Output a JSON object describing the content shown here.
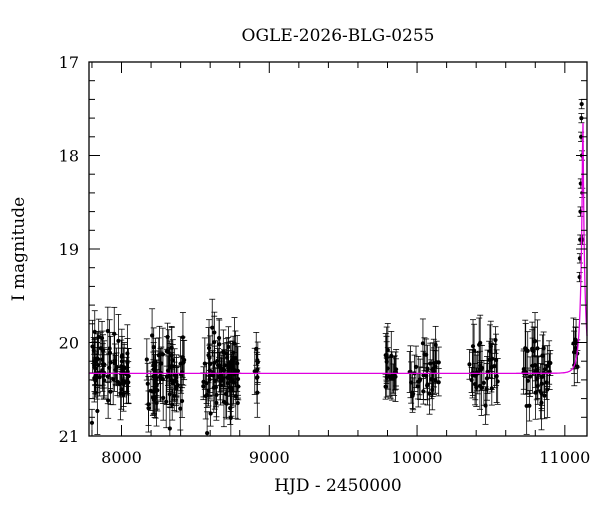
{
  "chart_data": {
    "type": "scatter",
    "title": "OGLE-2026-BLG-0255",
    "xlabel": "HJD - 2450000",
    "ylabel": "I magnitude",
    "xlim": [
      7780,
      11150
    ],
    "ylim": [
      21,
      17
    ],
    "y_inverted": true,
    "x_ticks": [
      8000,
      9000,
      10000,
      11000
    ],
    "y_ticks": [
      17,
      18,
      19,
      20,
      21
    ],
    "grid": false,
    "colors": {
      "points": "#000000",
      "model": "#e000e0",
      "axes": "#000000"
    },
    "series": [
      {
        "kind": "points",
        "seasons": [
          {
            "x_range": [
              7800,
              8050
            ],
            "mag_mean": 20.3,
            "mag_spread": 0.45,
            "err": 0.22,
            "count": 70
          },
          {
            "x_range": [
              8170,
              8430
            ],
            "mag_mean": 20.35,
            "mag_spread": 0.45,
            "err": 0.22,
            "count": 70
          },
          {
            "x_range": [
              8550,
              8790
            ],
            "mag_mean": 20.3,
            "mag_spread": 0.45,
            "err": 0.22,
            "count": 80
          },
          {
            "x_range": [
              8900,
              8930
            ],
            "mag_mean": 20.3,
            "mag_spread": 0.3,
            "err": 0.2,
            "count": 8
          },
          {
            "x_range": [
              9780,
              9860
            ],
            "mag_mean": 20.25,
            "mag_spread": 0.35,
            "err": 0.22,
            "count": 18
          },
          {
            "x_range": [
              9950,
              10150
            ],
            "mag_mean": 20.3,
            "mag_spread": 0.35,
            "err": 0.22,
            "count": 35
          },
          {
            "x_range": [
              10350,
              10550
            ],
            "mag_mean": 20.3,
            "mag_spread": 0.35,
            "err": 0.22,
            "count": 35
          },
          {
            "x_range": [
              10720,
              10930
            ],
            "mag_mean": 20.3,
            "mag_spread": 0.35,
            "err": 0.22,
            "count": 40
          },
          {
            "x_range": [
              11050,
              11090
            ],
            "mag_mean": 20.05,
            "mag_spread": 0.3,
            "err": 0.2,
            "count": 8
          }
        ],
        "event_points": [
          {
            "x": 11100,
            "y": 19.3
          },
          {
            "x": 11102,
            "y": 19.1
          },
          {
            "x": 11104,
            "y": 18.9
          },
          {
            "x": 11106,
            "y": 18.6
          },
          {
            "x": 11108,
            "y": 18.3
          },
          {
            "x": 11110,
            "y": 17.8
          },
          {
            "x": 11112,
            "y": 17.6
          },
          {
            "x": 11114,
            "y": 17.45
          },
          {
            "x": 11116,
            "y": 18.0
          },
          {
            "x": 11118,
            "y": 18.4
          },
          {
            "x": 11120,
            "y": 18.9
          }
        ]
      },
      {
        "kind": "model",
        "baseline": 20.33,
        "t0": 11122,
        "u0": 0.08,
        "tE": 32
      }
    ]
  }
}
